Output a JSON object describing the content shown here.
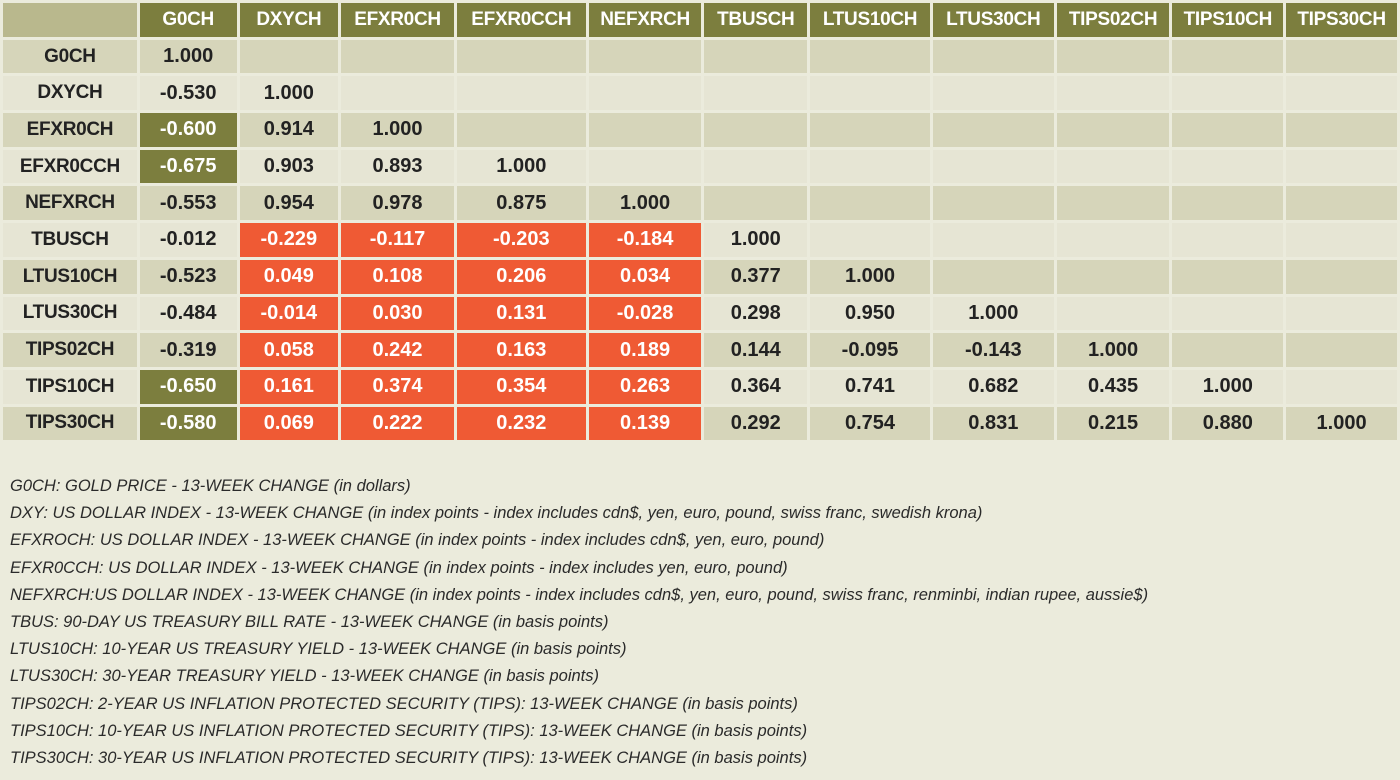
{
  "chart_data": {
    "type": "table",
    "columns": [
      "G0CH",
      "DXYCH",
      "EFXR0CH",
      "EFXR0CCH",
      "NEFXRCH",
      "TBUSCH",
      "LTUS10CH",
      "LTUS30CH",
      "TIPS02CH",
      "TIPS10CH",
      "TIPS30CH"
    ],
    "rows": [
      {
        "label": "G0CH",
        "values": [
          "1.000"
        ]
      },
      {
        "label": "DXYCH",
        "values": [
          "-0.530",
          "1.000"
        ]
      },
      {
        "label": "EFXR0CH",
        "values": [
          "-0.600",
          "0.914",
          "1.000"
        ]
      },
      {
        "label": "EFXR0CCH",
        "values": [
          "-0.675",
          "0.903",
          "0.893",
          "1.000"
        ]
      },
      {
        "label": "NEFXRCH",
        "values": [
          "-0.553",
          "0.954",
          "0.978",
          "0.875",
          "1.000"
        ]
      },
      {
        "label": "TBUSCH",
        "values": [
          "-0.012",
          "-0.229",
          "-0.117",
          "-0.203",
          "-0.184",
          "1.000"
        ]
      },
      {
        "label": "LTUS10CH",
        "values": [
          "-0.523",
          "0.049",
          "0.108",
          "0.206",
          "0.034",
          "0.377",
          "1.000"
        ]
      },
      {
        "label": "LTUS30CH",
        "values": [
          "-0.484",
          "-0.014",
          "0.030",
          "0.131",
          "-0.028",
          "0.298",
          "0.950",
          "1.000"
        ]
      },
      {
        "label": "TIPS02CH",
        "values": [
          "-0.319",
          "0.058",
          "0.242",
          "0.163",
          "0.189",
          "0.144",
          "-0.095",
          "-0.143",
          "1.000"
        ]
      },
      {
        "label": "TIPS10CH",
        "values": [
          "-0.650",
          "0.161",
          "0.374",
          "0.354",
          "0.263",
          "0.364",
          "0.741",
          "0.682",
          "0.435",
          "1.000"
        ]
      },
      {
        "label": "TIPS30CH",
        "values": [
          "-0.580",
          "0.069",
          "0.222",
          "0.232",
          "0.139",
          "0.292",
          "0.754",
          "0.831",
          "0.215",
          "0.880",
          "1.000"
        ]
      }
    ],
    "highlights": {
      "olive": [
        [
          2,
          0
        ],
        [
          3,
          0
        ],
        [
          9,
          0
        ],
        [
          10,
          0
        ]
      ],
      "orange": [
        [
          5,
          1
        ],
        [
          5,
          2
        ],
        [
          5,
          3
        ],
        [
          5,
          4
        ],
        [
          6,
          1
        ],
        [
          6,
          2
        ],
        [
          6,
          3
        ],
        [
          6,
          4
        ],
        [
          7,
          1
        ],
        [
          7,
          2
        ],
        [
          7,
          3
        ],
        [
          7,
          4
        ],
        [
          8,
          1
        ],
        [
          8,
          2
        ],
        [
          8,
          3
        ],
        [
          8,
          4
        ],
        [
          9,
          1
        ],
        [
          9,
          2
        ],
        [
          9,
          3
        ],
        [
          9,
          4
        ],
        [
          10,
          1
        ],
        [
          10,
          2
        ],
        [
          10,
          3
        ],
        [
          10,
          4
        ]
      ]
    }
  },
  "legend": [
    "G0CH: GOLD PRICE - 13-WEEK CHANGE (in dollars)",
    "DXY: US DOLLAR INDEX - 13-WEEK CHANGE (in index points - index includes cdn$, yen, euro, pound, swiss franc, swedish krona)",
    "EFXROCH: US DOLLAR INDEX - 13-WEEK CHANGE (in index points - index includes cdn$, yen, euro, pound)",
    "EFXR0CCH: US DOLLAR INDEX - 13-WEEK CHANGE (in index points - index includes yen, euro, pound)",
    "NEFXRCH:US DOLLAR INDEX - 13-WEEK CHANGE (in index points - index includes cdn$, yen, euro, pound, swiss franc, renminbi, indian rupee, aussie$)",
    "TBUS: 90-DAY US TREASURY BILL RATE - 13-WEEK CHANGE (in basis points)",
    "LTUS10CH: 10-YEAR US TREASURY YIELD - 13-WEEK CHANGE (in basis points)",
    "LTUS30CH: 30-YEAR TREASURY YIELD - 13-WEEK CHANGE (in basis points)",
    "TIPS02CH: 2-YEAR US INFLATION PROTECTED SECURITY (TIPS): 13-WEEK CHANGE (in basis points)",
    "TIPS10CH: 10-YEAR US INFLATION PROTECTED SECURITY (TIPS): 13-WEEK CHANGE (in basis points)",
    "TIPS30CH: 30-YEAR US INFLATION PROTECTED SECURITY (TIPS): 13-WEEK CHANGE (in basis points)"
  ],
  "colors": {
    "header": "#7c7e3e",
    "highlight_olive": "#7c7e3e",
    "highlight_orange": "#ef5a34",
    "band_dark": "#d6d5ba",
    "band_light": "#e6e5d4",
    "background": "#ebebdc"
  }
}
